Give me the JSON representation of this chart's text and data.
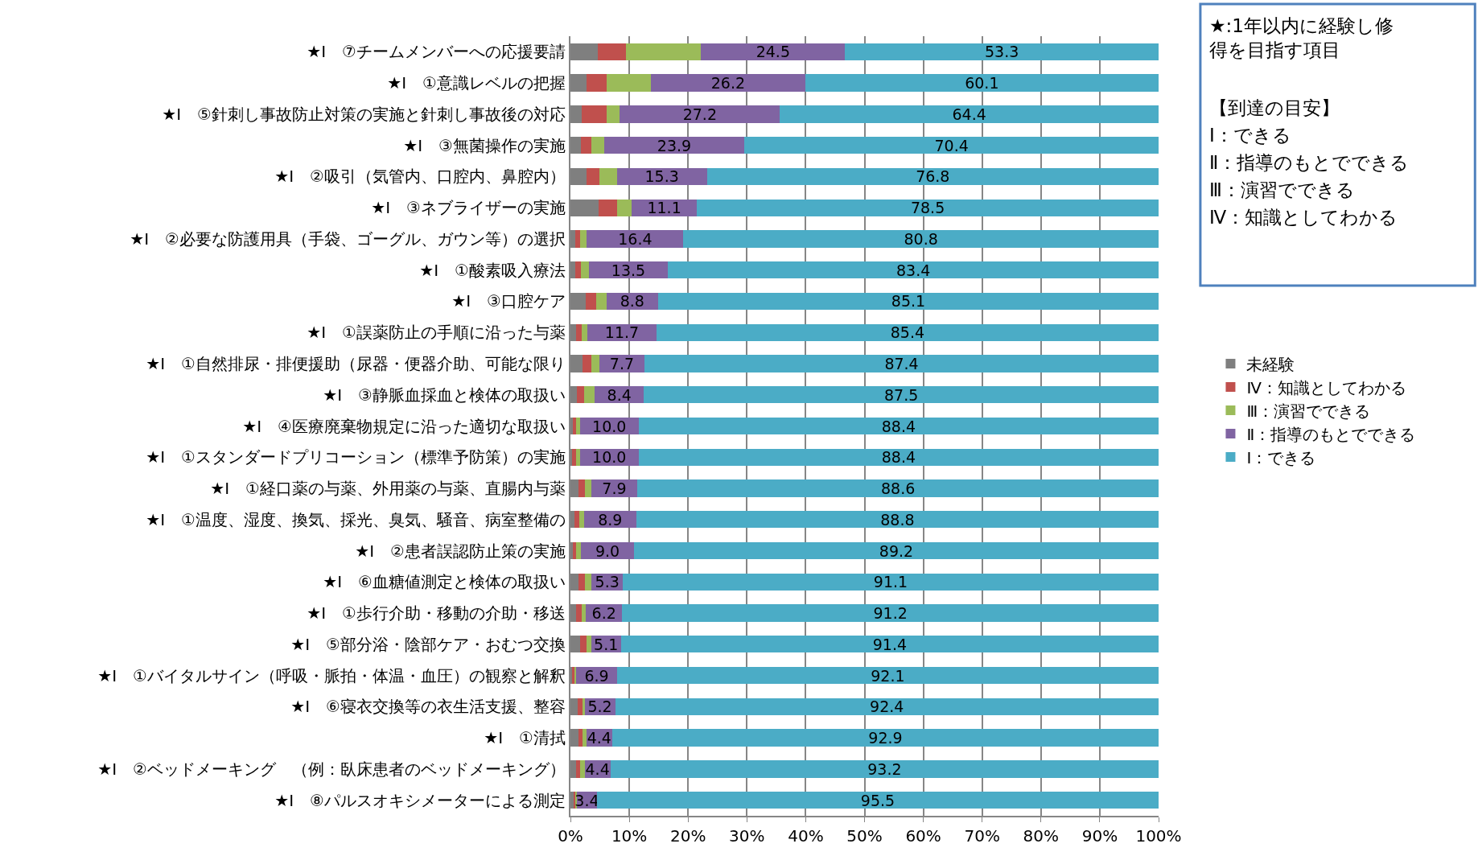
{
  "chart_data": {
    "type": "bar",
    "orientation": "horizontal",
    "stacked": true,
    "categories": [
      "★Ⅰ　⑦チームメンバーへの応援要請",
      "★Ⅰ　①意識レベルの把握",
      "★Ⅰ　⑤針刺し事故防止対策の実施と針刺し事故後の対応",
      "★Ⅰ　③無菌操作の実施",
      "★Ⅰ　②吸引（気管内、口腔内、鼻腔内）",
      "★Ⅰ　③ネブライザーの実施",
      "★Ⅰ　②必要な防護用具（手袋、ゴーグル、ガウン等）の選択",
      "★Ⅰ　①酸素吸入療法",
      "★Ⅰ　③口腔ケア",
      "★Ⅰ　①誤薬防止の手順に沿った与薬",
      "★Ⅰ　①自然排尿・排便援助（尿器・便器介助、可能な限り",
      "★Ⅰ　③静脈血採血と検体の取扱い",
      "★Ⅰ　④医療廃棄物規定に沿った適切な取扱い",
      "★Ⅰ　①スタンダードプリコーション（標準予防策）の実施",
      "★Ⅰ　①経口薬の与薬、外用薬の与薬、直腸内与薬",
      "★Ⅰ　①温度、湿度、換気、採光、臭気、騒音、病室整備の",
      "★Ⅰ　②患者誤認防止策の実施",
      "★Ⅰ　⑥血糖値測定と検体の取扱い",
      "★Ⅰ　①歩行介助・移動の介助・移送",
      "★Ⅰ　⑤部分浴・陰部ケア・おむつ交換",
      "★Ⅰ　①バイタルサイン（呼吸・脈拍・体温・血圧）の観察と解釈",
      "★Ⅰ　⑥寝衣交換等の衣生活支援、整容",
      "★Ⅰ　①清拭",
      "★Ⅰ　②ベッドメーキング　（例：臥床患者のベッドメーキング）",
      "★Ⅰ　⑧パルスオキシメーターによる測定"
    ],
    "series": [
      {
        "name": "未経験",
        "color": "#7f7f7f",
        "values": [
          4.6,
          2.8,
          1.9,
          1.8,
          2.8,
          4.8,
          0.8,
          0.8,
          2.6,
          1.0,
          2.0,
          1.1,
          0.4,
          0.3,
          1.3,
          0.7,
          0.4,
          1.4,
          1.0,
          1.6,
          0.3,
          1.2,
          1.3,
          1.0,
          0.5
        ]
      },
      {
        "name": "Ⅳ：知識としてわかる",
        "color": "#c0504d",
        "values": [
          4.8,
          3.4,
          4.2,
          1.8,
          2.1,
          3.2,
          0.8,
          1.0,
          1.8,
          0.9,
          1.5,
          1.2,
          0.5,
          0.6,
          1.2,
          0.8,
          0.6,
          1.1,
          0.9,
          1.2,
          0.4,
          0.8,
          0.8,
          0.7,
          0.3
        ]
      },
      {
        "name": "Ⅲ：演習でできる",
        "color": "#9bbb59",
        "values": [
          12.8,
          7.5,
          2.3,
          2.1,
          3.0,
          2.4,
          1.2,
          1.3,
          1.7,
          1.0,
          1.4,
          1.8,
          0.7,
          0.7,
          1.0,
          0.8,
          0.8,
          1.1,
          0.7,
          0.7,
          0.3,
          0.4,
          0.6,
          0.7,
          0.3
        ]
      },
      {
        "name": "Ⅱ：指導のもとでできる",
        "color": "#8064a2",
        "values": [
          24.5,
          26.2,
          27.2,
          23.9,
          15.3,
          11.1,
          16.4,
          13.5,
          8.8,
          11.7,
          7.7,
          8.4,
          10.0,
          10.0,
          7.9,
          8.9,
          9.0,
          5.3,
          6.2,
          5.1,
          6.9,
          5.2,
          4.4,
          4.4,
          3.4
        ],
        "value_labels": [
          "24.5",
          "26.2",
          "27.2",
          "23.9",
          "15.3",
          "11.1",
          "16.4",
          "13.5",
          "8.8",
          "11.7",
          "7.7",
          "8.4",
          "10.0",
          "10.0",
          "7.9",
          "8.9",
          "9.0",
          "5.3",
          "6.2",
          "5.1",
          "6.9",
          "5.2",
          "4.4",
          "4.4",
          "3.4"
        ]
      },
      {
        "name": "Ⅰ：できる",
        "color": "#4bacc6",
        "values": [
          53.3,
          60.1,
          64.4,
          70.4,
          76.8,
          78.5,
          80.8,
          83.4,
          85.1,
          85.4,
          87.4,
          87.5,
          88.4,
          88.4,
          88.6,
          88.8,
          89.2,
          91.1,
          91.2,
          91.4,
          92.1,
          92.4,
          92.9,
          93.2,
          95.5
        ],
        "value_labels": [
          "53.3",
          "60.1",
          "64.4",
          "70.4",
          "76.8",
          "78.5",
          "80.8",
          "83.4",
          "85.1",
          "85.4",
          "87.4",
          "87.5",
          "88.4",
          "88.4",
          "88.6",
          "88.8",
          "89.2",
          "91.1",
          "91.2",
          "91.4",
          "92.1",
          "92.4",
          "92.9",
          "93.2",
          "95.5"
        ]
      }
    ],
    "xlim": [
      0,
      100
    ],
    "xticks": [
      {
        "value": 0,
        "label": "0%"
      },
      {
        "value": 10,
        "label": "10%"
      },
      {
        "value": 20,
        "label": "20%"
      },
      {
        "value": 30,
        "label": "30%"
      },
      {
        "value": 40,
        "label": "40%"
      },
      {
        "value": 50,
        "label": "50%"
      },
      {
        "value": 60,
        "label": "60%"
      },
      {
        "value": 70,
        "label": "70%"
      },
      {
        "value": 80,
        "label": "80%"
      },
      {
        "value": 90,
        "label": "90%"
      },
      {
        "value": 100,
        "label": "100%"
      }
    ],
    "grid": "x",
    "legend": "right",
    "annotations": [
      "★:1年以内に経験し修得を目指す項目",
      "【到達の目安】",
      "Ⅰ：できる",
      "Ⅱ：指導のもとでできる",
      "Ⅲ：演習でできる",
      "Ⅳ：知識としてわかる"
    ]
  }
}
